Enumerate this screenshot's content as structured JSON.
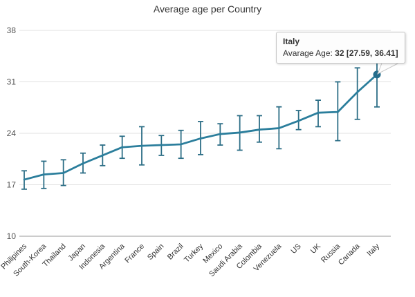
{
  "chart": {
    "title": "Average age per Country",
    "colors": {
      "line": "#2b7e9c",
      "errorbar": "#2c6e86",
      "marker": "#256d8c",
      "grid": "#e0e0e0",
      "axis_line": "#9a9a9a",
      "y_label": "#555555",
      "x_label": "#333333",
      "title": "#333333"
    }
  },
  "tooltip": {
    "country": "Italy",
    "label": "Avarage Age: ",
    "value": "32 [27.59, 36.41]"
  },
  "chart_data": {
    "type": "line",
    "title": "Average age per Country",
    "xlabel": "",
    "ylabel": "",
    "grid": true,
    "legend": false,
    "ylim": [
      10,
      38
    ],
    "yticks": [
      10,
      17,
      24,
      31,
      38
    ],
    "categories": [
      "Philipines",
      "South-Korea",
      "Thailand",
      "Japan",
      "Indonesia",
      "Argentina",
      "France",
      "Spain",
      "Brazil",
      "Turkey",
      "Mexico",
      "Saudi Arabia",
      "Colombia",
      "Venezuela",
      "US",
      "UK",
      "Russia",
      "Canada",
      "Italy"
    ],
    "series": [
      {
        "name": "Avarage Age",
        "values": [
          17.7,
          18.4,
          18.6,
          19.9,
          21.0,
          22.1,
          22.3,
          22.4,
          22.5,
          23.3,
          23.9,
          24.1,
          24.5,
          24.7,
          25.7,
          26.8,
          26.9,
          29.6,
          32
        ],
        "error_low": [
          16.4,
          16.5,
          16.9,
          18.6,
          19.6,
          20.6,
          19.7,
          21.0,
          20.6,
          21.1,
          22.4,
          21.7,
          22.8,
          21.9,
          24.5,
          24.9,
          23.0,
          25.9,
          27.59
        ],
        "error_high": [
          18.9,
          20.2,
          20.4,
          21.3,
          22.4,
          23.6,
          24.9,
          23.7,
          24.4,
          25.6,
          25.3,
          26.4,
          26.4,
          27.6,
          27.1,
          28.5,
          31.0,
          32.9,
          36.41
        ]
      }
    ],
    "highlighted_point": {
      "category": "Italy",
      "value": 32,
      "low": 27.59,
      "high": 36.41
    }
  }
}
